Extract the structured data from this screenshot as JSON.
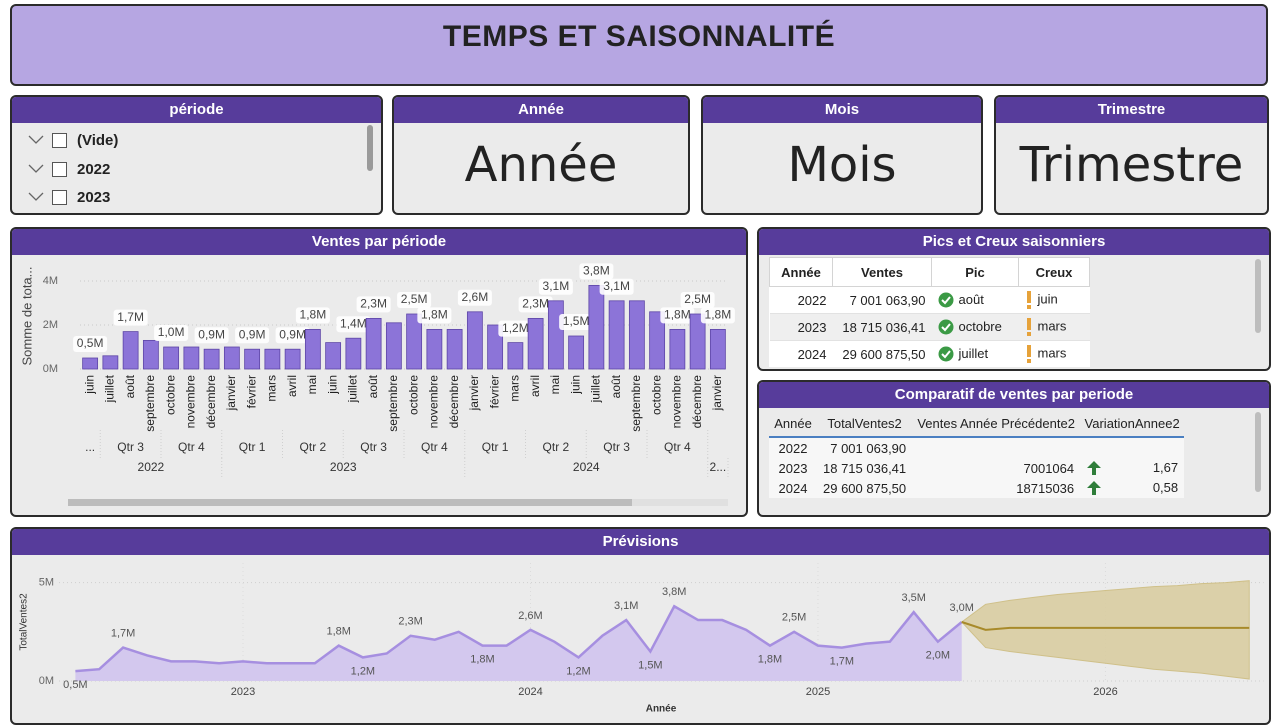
{
  "header": {
    "title": "TEMPS ET SAISONNALITÉ"
  },
  "slicer": {
    "title": "période",
    "items": [
      "(Vide)",
      "2022",
      "2023"
    ]
  },
  "cards": [
    {
      "title": "Année",
      "value": "Année"
    },
    {
      "title": "Mois",
      "value": "Mois"
    },
    {
      "title": "Trimestre",
      "value": "Trimestre"
    }
  ],
  "tables": [
    {
      "title": "Pics et Creux saisonniers",
      "columns": [
        "Année",
        "Ventes",
        "Pic",
        "Creux"
      ],
      "rows": [
        [
          "2022",
          "7 001 063,90",
          "août",
          "juin"
        ],
        [
          "2023",
          "18 715 036,41",
          "octobre",
          "mars"
        ],
        [
          "2024",
          "29 600 875,50",
          "juillet",
          "mars"
        ]
      ]
    },
    {
      "title": "Comparatif de ventes par periode",
      "columns": [
        "Année",
        "TotalVentes2",
        "Ventes Année Précédente2",
        "VariationAnnee2"
      ],
      "rows": [
        [
          "2022",
          "7 001 063,90",
          null,
          null
        ],
        [
          "2023",
          "18 715 036,41",
          "7001064",
          "1,67"
        ],
        [
          "2024",
          "29 600 875,50",
          "18715036",
          "0,58"
        ]
      ]
    }
  ],
  "chart_data": [
    {
      "type": "bar",
      "title": "Ventes par période",
      "ylabel": "Somme de tota...",
      "categories": [
        "juin",
        "juillet",
        "août",
        "septembre",
        "octobre",
        "novembre",
        "décembre",
        "janvier",
        "février",
        "mars",
        "avril",
        "mai",
        "juin",
        "juillet",
        "août",
        "septembre",
        "octobre",
        "novembre",
        "décembre",
        "janvier",
        "février",
        "mars",
        "avril",
        "mai",
        "juin",
        "juillet",
        "août",
        "septembre",
        "octobre",
        "novembre",
        "décembre",
        "janvier"
      ],
      "quarters": [
        "...",
        "Qtr 3",
        "Qtr 4",
        "Qtr 1",
        "Qtr 2",
        "Qtr 3",
        "Qtr 4",
        "Qtr 1",
        "Qtr 2",
        "Qtr 3",
        "Qtr 4"
      ],
      "years": [
        "2022",
        "2023",
        "2024",
        "2..."
      ],
      "values": [
        500000,
        600000,
        1700000,
        1300000,
        1000000,
        1000000,
        900000,
        1000000,
        900000,
        900000,
        900000,
        1800000,
        1200000,
        1400000,
        2300000,
        2100000,
        2500000,
        1800000,
        1800000,
        2600000,
        2000000,
        1200000,
        2300000,
        3100000,
        1500000,
        3800000,
        3100000,
        3100000,
        2600000,
        1800000,
        2500000,
        1800000
      ],
      "value_labels": [
        "0,5M",
        null,
        "1,7M",
        null,
        "1,0M",
        null,
        "0,9M",
        null,
        "0,9M",
        null,
        "0,9M",
        "1,8M",
        null,
        "1,4M",
        "2,3M",
        null,
        "2,5M",
        "1,8M",
        null,
        "2,6M",
        null,
        "1,2M",
        "2,3M",
        "3,1M",
        "1,5M",
        "3,8M",
        "3,1M",
        null,
        null,
        "1,8M",
        "2,5M",
        "1,8M"
      ],
      "color": "#8c74d8",
      "ylim": [
        0,
        4800000
      ],
      "yticks": [
        {
          "value": 0,
          "label": "0M"
        },
        {
          "value": 2000000,
          "label": "2M"
        },
        {
          "value": 4000000,
          "label": "4M"
        }
      ],
      "grid": true
    },
    {
      "type": "line",
      "title": "Prévisions",
      "xlabel": "Année",
      "ylabel": "TotalVentes2",
      "x": [
        2022.417,
        2022.5,
        2022.583,
        2022.667,
        2022.75,
        2022.833,
        2022.917,
        2023,
        2023.083,
        2023.167,
        2023.25,
        2023.333,
        2023.417,
        2023.5,
        2023.583,
        2023.667,
        2023.75,
        2023.833,
        2023.917,
        2024,
        2024.083,
        2024.167,
        2024.25,
        2024.333,
        2024.417,
        2024.5,
        2024.583,
        2024.667,
        2024.75,
        2024.833,
        2024.917,
        2025,
        2025.083,
        2025.167,
        2025.25,
        2025.333,
        2025.417,
        2025.5
      ],
      "values": [
        500000,
        600000,
        1700000,
        1300000,
        1000000,
        1000000,
        900000,
        1000000,
        900000,
        900000,
        900000,
        1800000,
        1200000,
        1400000,
        2300000,
        2100000,
        2500000,
        1800000,
        1800000,
        2600000,
        2000000,
        1200000,
        2300000,
        3100000,
        1500000,
        3800000,
        3100000,
        3100000,
        2600000,
        1800000,
        2500000,
        1800000,
        1700000,
        1900000,
        2000000,
        3500000,
        2000000,
        3000000
      ],
      "value_labels": [
        "0,5M",
        null,
        "1,7M",
        null,
        null,
        null,
        null,
        null,
        null,
        null,
        null,
        "1,8M",
        "1,2M",
        null,
        "2,3M",
        null,
        null,
        "1,8M",
        null,
        "2,6M",
        null,
        "1,2M",
        null,
        "3,1M",
        "1,5M",
        "3,8M",
        null,
        null,
        null,
        "1,8M",
        "2,5M",
        null,
        "1,7M",
        null,
        null,
        "3,5M",
        "2,0M",
        "3,0M"
      ],
      "color": "#a68fe0",
      "forecast": {
        "x": [
          2025.5,
          2025.583,
          2025.667,
          2025.75,
          2025.833,
          2025.917,
          2026,
          2026.083,
          2026.167,
          2026.25,
          2026.333,
          2026.417,
          2026.5
        ],
        "values": [
          3000000,
          2600000,
          2700000,
          2700000,
          2700000,
          2700000,
          2700000,
          2700000,
          2700000,
          2700000,
          2700000,
          2700000,
          2700000
        ],
        "upper": [
          3000000,
          3900000,
          4100000,
          4250000,
          4400000,
          4500000,
          4600000,
          4700000,
          4800000,
          4850000,
          4950000,
          5000000,
          5100000
        ],
        "lower": [
          3000000,
          1700000,
          1500000,
          1350000,
          1200000,
          1050000,
          900000,
          750000,
          600000,
          500000,
          400000,
          250000,
          100000
        ],
        "color": "#a88a2a",
        "band_color": "#d9cc9e"
      },
      "xlim": [
        2022.36,
        2026.55
      ],
      "xticks": [
        2023,
        2024,
        2025,
        2026
      ],
      "ylim": [
        0,
        6000000
      ],
      "yticks": [
        {
          "value": 0,
          "label": "0M"
        },
        {
          "value": 5000000,
          "label": "5M"
        }
      ],
      "grid": true
    }
  ]
}
